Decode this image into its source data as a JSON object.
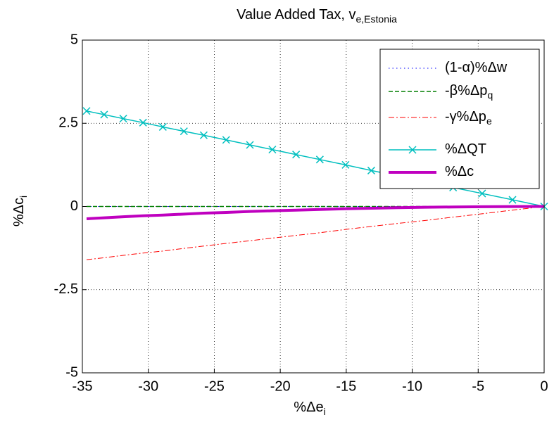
{
  "chart_data": {
    "type": "line",
    "title": {
      "text": "Value Added Tax, v",
      "subscript": "e,Estonia"
    },
    "xlabel": {
      "text": "%Δe",
      "subscript": "i"
    },
    "ylabel": {
      "text": "%Δc",
      "subscript": "i"
    },
    "x": [
      -34.68,
      -33.35,
      -31.9,
      -30.4,
      -28.9,
      -27.3,
      -25.8,
      -24.1,
      -22.3,
      -20.6,
      -18.8,
      -17.0,
      -15.05,
      -13.1,
      -11.1,
      -9.0,
      -6.9,
      -4.7,
      -2.4,
      0
    ],
    "series": [
      {
        "name": "(1-α)%Δw",
        "color": "#0000ff",
        "dash": "1.5 4",
        "width": 1,
        "values": [
          0,
          0,
          0,
          0,
          0,
          0,
          0,
          0,
          0,
          0,
          0,
          0,
          0,
          0,
          0,
          0,
          0,
          0,
          0,
          0
        ]
      },
      {
        "name": "-β%Δp",
        "subscript": "q",
        "color": "#007f00",
        "dash": "6 3",
        "width": 1.5,
        "values": [
          0,
          0,
          0,
          0,
          0,
          0,
          0,
          0,
          0,
          0,
          0,
          0,
          0,
          0,
          0,
          0,
          0,
          0,
          0,
          0
        ]
      },
      {
        "name": "-γ%Δp",
        "subscript": "e",
        "color": "#ff0000",
        "dash": "8 3 2 3",
        "width": 1,
        "values": [
          -1.6,
          -1.54,
          -1.47,
          -1.4,
          -1.34,
          -1.26,
          -1.19,
          -1.11,
          -1.03,
          -0.95,
          -0.87,
          -0.79,
          -0.69,
          -0.6,
          -0.51,
          -0.42,
          -0.32,
          -0.22,
          -0.11,
          0
        ]
      },
      {
        "name": "%ΔQT",
        "color": "#00bfbf",
        "dash": "",
        "width": 1.5,
        "marker": "x",
        "values": [
          2.87,
          2.76,
          2.64,
          2.52,
          2.39,
          2.26,
          2.14,
          2.0,
          1.85,
          1.71,
          1.56,
          1.41,
          1.25,
          1.08,
          0.92,
          0.75,
          0.57,
          0.39,
          0.2,
          0
        ]
      },
      {
        "name": "%Δc",
        "color": "#bf00bf",
        "dash": "",
        "width": 4,
        "values": [
          -0.37,
          -0.34,
          -0.31,
          -0.28,
          -0.26,
          -0.23,
          -0.2,
          -0.18,
          -0.15,
          -0.13,
          -0.11,
          -0.09,
          -0.07,
          -0.053,
          -0.038,
          -0.025,
          -0.015,
          -0.007,
          -0.002,
          0
        ]
      }
    ],
    "xlim": [
      -35,
      0
    ],
    "ylim": [
      -5,
      5
    ],
    "xticks": [
      -35,
      -30,
      -25,
      -20,
      -15,
      -10,
      -5,
      0
    ],
    "yticks": [
      -5,
      -2.5,
      0,
      2.5,
      5
    ],
    "grid": true,
    "legend": "upper right"
  }
}
